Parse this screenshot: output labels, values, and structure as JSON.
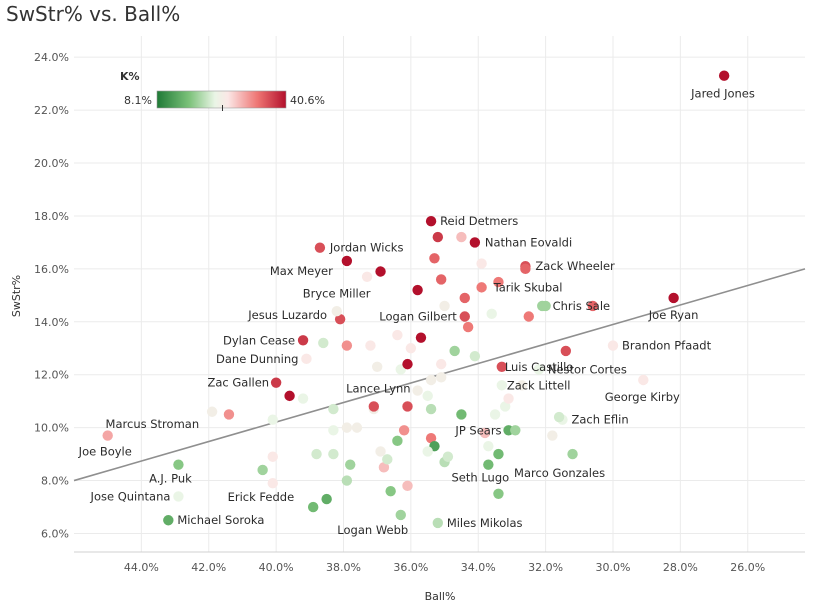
{
  "chart_data": {
    "type": "scatter",
    "title": "SwStr% vs. Ball%",
    "xlabel": "Ball%",
    "ylabel": "SwStr%",
    "x_reversed": true,
    "xlim": [
      46.0,
      24.3
    ],
    "ylim": [
      5.3,
      24.8
    ],
    "x_ticks": [
      44,
      42,
      40,
      38,
      36,
      34,
      32,
      30,
      28,
      26
    ],
    "y_ticks": [
      6,
      8,
      10,
      12,
      14,
      16,
      18,
      20,
      22,
      24
    ],
    "tick_suffix": ".0%",
    "grid": true,
    "legend": {
      "title": "K%",
      "min_label": "8.1%",
      "max_label": "40.6%",
      "min": 8.1,
      "max": 40.6,
      "marker": 24.6
    },
    "trendline": {
      "x1": 46.0,
      "y1": 8.0,
      "x2": 24.3,
      "y2": 16.0
    },
    "series": [
      {
        "name": "Jared Jones",
        "x": 26.7,
        "y": 23.3,
        "k": 33
      },
      {
        "name": "Reid Detmers",
        "x": 35.4,
        "y": 17.8,
        "k": 38
      },
      {
        "name": "Nathan Eovaldi",
        "x": 34.1,
        "y": 17.0,
        "k": 34
      },
      {
        "name": "Jordan Wicks",
        "x": 38.7,
        "y": 16.8,
        "k": 27
      },
      {
        "name": "Zack Wheeler",
        "x": 32.6,
        "y": 16.1,
        "k": 27
      },
      {
        "name": "Max Meyer",
        "x": 37.9,
        "y": 16.3,
        "k": 37
      },
      {
        "name": "Tarik Skubal",
        "x": 33.9,
        "y": 15.3,
        "k": 25
      },
      {
        "name": "Joe Ryan",
        "x": 28.2,
        "y": 14.9,
        "k": 33
      },
      {
        "name": "Bryce Miller",
        "x": 36.9,
        "y": 15.9,
        "k": 33
      },
      {
        "name": "Logan Gilbert",
        "x": 34.4,
        "y": 14.2,
        "k": 27
      },
      {
        "name": "Jesus Luzardo",
        "x": 38.1,
        "y": 14.1,
        "k": 27
      },
      {
        "name": "Chris Sale",
        "x": 32.0,
        "y": 14.6,
        "k": 15
      },
      {
        "name": "Dylan Cease",
        "x": 39.2,
        "y": 13.3,
        "k": 28
      },
      {
        "name": "Brandon Pfaadt",
        "x": 30.0,
        "y": 13.1,
        "k": 20
      },
      {
        "name": "Luis Castillo",
        "x": 33.3,
        "y": 12.3,
        "k": 27
      },
      {
        "name": "Dane Dunning",
        "x": 39.1,
        "y": 12.6,
        "k": 20
      },
      {
        "name": "Nestor Cortes",
        "x": 32.2,
        "y": 12.2,
        "k": 18
      },
      {
        "name": "Zac Gallen",
        "x": 40.0,
        "y": 11.7,
        "k": 28
      },
      {
        "name": "Zack Littell",
        "x": 33.3,
        "y": 11.6,
        "k": 18
      },
      {
        "name": "Lance Lynn",
        "x": 35.8,
        "y": 11.4,
        "k": 19
      },
      {
        "name": "George Kirby",
        "x": 29.1,
        "y": 11.8,
        "k": 20
      },
      {
        "name": "Marcus Stroman",
        "x": 41.9,
        "y": 10.6,
        "k": 19
      },
      {
        "name": "Zach Eflin",
        "x": 31.5,
        "y": 10.3,
        "k": 18
      },
      {
        "name": "JP Sears",
        "x": 33.1,
        "y": 9.9,
        "k": 12
      },
      {
        "name": "Joe Boyle",
        "x": 45.0,
        "y": 9.7,
        "k": 23
      },
      {
        "name": "Marco Gonzales",
        "x": 31.2,
        "y": 9.0,
        "k": 15
      },
      {
        "name": "A.J. Puk",
        "x": 42.9,
        "y": 8.6,
        "k": 14
      },
      {
        "name": "Seth Lugo",
        "x": 33.7,
        "y": 8.6,
        "k": 13
      },
      {
        "name": "Jose Quintana",
        "x": 42.9,
        "y": 7.4,
        "k": 18
      },
      {
        "name": "Erick Fedde",
        "x": 38.9,
        "y": 7.0,
        "k": 13
      },
      {
        "name": "Michael Soroka",
        "x": 43.2,
        "y": 6.5,
        "k": 12
      },
      {
        "name": "Miles Mikolas",
        "x": 35.2,
        "y": 6.4,
        "k": 16
      },
      {
        "name": "Logan Webb",
        "x": 36.3,
        "y": 6.7,
        "k": 15
      },
      {
        "name": "",
        "x": 41.4,
        "y": 10.5,
        "k": 24
      },
      {
        "name": "",
        "x": 40.1,
        "y": 10.3,
        "k": 18
      },
      {
        "name": "",
        "x": 40.1,
        "y": 8.9,
        "k": 20
      },
      {
        "name": "",
        "x": 40.4,
        "y": 8.4,
        "k": 15
      },
      {
        "name": "",
        "x": 40.1,
        "y": 7.9,
        "k": 20
      },
      {
        "name": "",
        "x": 39.6,
        "y": 11.2,
        "k": 38
      },
      {
        "name": "",
        "x": 39.2,
        "y": 11.1,
        "k": 18
      },
      {
        "name": "",
        "x": 38.8,
        "y": 9.0,
        "k": 17
      },
      {
        "name": "",
        "x": 38.5,
        "y": 7.3,
        "k": 12
      },
      {
        "name": "",
        "x": 38.3,
        "y": 10.7,
        "k": 17
      },
      {
        "name": "",
        "x": 38.3,
        "y": 9.9,
        "k": 18
      },
      {
        "name": "",
        "x": 38.3,
        "y": 9.0,
        "k": 17
      },
      {
        "name": "",
        "x": 38.2,
        "y": 14.4,
        "k": 19
      },
      {
        "name": "",
        "x": 38.6,
        "y": 13.2,
        "k": 17
      },
      {
        "name": "",
        "x": 37.9,
        "y": 10.0,
        "k": 19
      },
      {
        "name": "",
        "x": 37.8,
        "y": 8.6,
        "k": 15
      },
      {
        "name": "",
        "x": 37.9,
        "y": 8.0,
        "k": 16
      },
      {
        "name": "",
        "x": 37.6,
        "y": 10.0,
        "k": 19
      },
      {
        "name": "",
        "x": 37.9,
        "y": 13.1,
        "k": 24
      },
      {
        "name": "",
        "x": 37.3,
        "y": 15.7,
        "k": 20
      },
      {
        "name": "",
        "x": 37.1,
        "y": 10.7,
        "k": 19
      },
      {
        "name": "",
        "x": 37.1,
        "y": 10.8,
        "k": 27
      },
      {
        "name": "",
        "x": 36.9,
        "y": 9.1,
        "k": 19
      },
      {
        "name": "",
        "x": 36.8,
        "y": 8.5,
        "k": 22
      },
      {
        "name": "",
        "x": 36.6,
        "y": 7.6,
        "k": 14
      },
      {
        "name": "",
        "x": 37.0,
        "y": 12.3,
        "k": 19
      },
      {
        "name": "",
        "x": 37.2,
        "y": 13.1,
        "k": 20
      },
      {
        "name": "",
        "x": 36.7,
        "y": 8.8,
        "k": 17
      },
      {
        "name": "",
        "x": 36.4,
        "y": 9.5,
        "k": 14
      },
      {
        "name": "",
        "x": 36.4,
        "y": 13.5,
        "k": 20
      },
      {
        "name": "",
        "x": 36.3,
        "y": 12.2,
        "k": 18
      },
      {
        "name": "",
        "x": 36.1,
        "y": 10.8,
        "k": 27
      },
      {
        "name": "",
        "x": 36.1,
        "y": 12.4,
        "k": 30
      },
      {
        "name": "",
        "x": 36.0,
        "y": 13.0,
        "k": 20
      },
      {
        "name": "",
        "x": 36.2,
        "y": 9.9,
        "k": 24
      },
      {
        "name": "",
        "x": 36.1,
        "y": 7.8,
        "k": 22
      },
      {
        "name": "",
        "x": 35.8,
        "y": 15.2,
        "k": 30
      },
      {
        "name": "",
        "x": 35.7,
        "y": 13.4,
        "k": 30
      },
      {
        "name": "",
        "x": 35.4,
        "y": 10.7,
        "k": 16
      },
      {
        "name": "",
        "x": 35.4,
        "y": 9.6,
        "k": 25
      },
      {
        "name": "",
        "x": 35.3,
        "y": 9.3,
        "k": 11
      },
      {
        "name": "",
        "x": 35.5,
        "y": 9.1,
        "k": 18
      },
      {
        "name": "",
        "x": 35.4,
        "y": 11.8,
        "k": 19
      },
      {
        "name": "",
        "x": 35.5,
        "y": 11.2,
        "k": 18
      },
      {
        "name": "",
        "x": 35.3,
        "y": 16.4,
        "k": 26
      },
      {
        "name": "",
        "x": 35.2,
        "y": 17.2,
        "k": 28
      },
      {
        "name": "",
        "x": 35.1,
        "y": 15.6,
        "k": 26
      },
      {
        "name": "",
        "x": 35.0,
        "y": 14.6,
        "k": 19
      },
      {
        "name": "",
        "x": 35.1,
        "y": 12.4,
        "k": 20
      },
      {
        "name": "",
        "x": 35.1,
        "y": 11.9,
        "k": 19
      },
      {
        "name": "",
        "x": 35.0,
        "y": 8.7,
        "k": 16
      },
      {
        "name": "",
        "x": 34.9,
        "y": 8.9,
        "k": 17
      },
      {
        "name": "",
        "x": 34.7,
        "y": 12.9,
        "k": 15
      },
      {
        "name": "",
        "x": 34.5,
        "y": 10.5,
        "k": 13
      },
      {
        "name": "",
        "x": 34.5,
        "y": 17.2,
        "k": 22
      },
      {
        "name": "",
        "x": 34.4,
        "y": 14.9,
        "k": 26
      },
      {
        "name": "",
        "x": 34.3,
        "y": 13.8,
        "k": 25
      },
      {
        "name": "",
        "x": 34.1,
        "y": 12.7,
        "k": 17
      },
      {
        "name": "",
        "x": 33.9,
        "y": 16.2,
        "k": 20
      },
      {
        "name": "",
        "x": 33.8,
        "y": 9.8,
        "k": 22
      },
      {
        "name": "",
        "x": 33.7,
        "y": 9.3,
        "k": 18
      },
      {
        "name": "",
        "x": 33.6,
        "y": 14.3,
        "k": 18
      },
      {
        "name": "",
        "x": 33.4,
        "y": 15.5,
        "k": 25
      },
      {
        "name": "",
        "x": 33.5,
        "y": 10.5,
        "k": 18
      },
      {
        "name": "",
        "x": 33.4,
        "y": 7.5,
        "k": 14
      },
      {
        "name": "",
        "x": 33.4,
        "y": 9.0,
        "k": 13
      },
      {
        "name": "",
        "x": 33.2,
        "y": 10.8,
        "k": 18
      },
      {
        "name": "",
        "x": 33.1,
        "y": 11.1,
        "k": 20
      },
      {
        "name": "",
        "x": 32.9,
        "y": 9.9,
        "k": 15
      },
      {
        "name": "",
        "x": 32.7,
        "y": 11.6,
        "k": 19
      },
      {
        "name": "",
        "x": 32.5,
        "y": 14.2,
        "k": 25
      },
      {
        "name": "",
        "x": 32.6,
        "y": 16.0,
        "k": 26
      },
      {
        "name": "",
        "x": 32.1,
        "y": 14.6,
        "k": 15
      },
      {
        "name": "",
        "x": 31.8,
        "y": 9.7,
        "k": 19
      },
      {
        "name": "",
        "x": 31.6,
        "y": 10.4,
        "k": 17
      },
      {
        "name": "",
        "x": 31.4,
        "y": 12.9,
        "k": 27
      },
      {
        "name": "",
        "x": 30.6,
        "y": 14.6,
        "k": 26
      }
    ]
  }
}
